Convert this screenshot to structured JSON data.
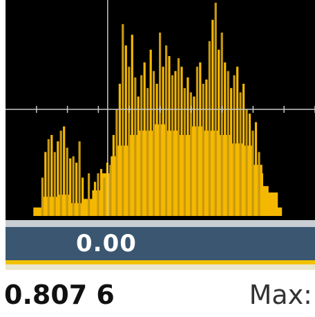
{
  "readout": {
    "value": "0.00"
  },
  "footer": {
    "value": "0.807 6",
    "max_label": "Max:"
  },
  "colors": {
    "plot_background": "#000000",
    "bar_fill": "#f5b800",
    "spike": "#c89a10",
    "crosshair": "#c8c8c8",
    "value_bar": "#3a5670",
    "accent": "#f2c200"
  },
  "chart_data": {
    "type": "bar",
    "xlim": [
      0,
      100
    ],
    "ylim": [
      0,
      100
    ],
    "crosshair": {
      "x": 33.0,
      "y": 50.0
    },
    "marker_lines": [
      {
        "axis": "y",
        "value": 50.0,
        "dashed": true
      }
    ],
    "fill_profile": [
      [
        9,
        4
      ],
      [
        12,
        9
      ],
      [
        17,
        10
      ],
      [
        21,
        6
      ],
      [
        25,
        8
      ],
      [
        28,
        12
      ],
      [
        31,
        20
      ],
      [
        34,
        28
      ],
      [
        36,
        33
      ],
      [
        40,
        38
      ],
      [
        43,
        40
      ],
      [
        48,
        43
      ],
      [
        52,
        40
      ],
      [
        56,
        38
      ],
      [
        60,
        42
      ],
      [
        64,
        40
      ],
      [
        69,
        38
      ],
      [
        73,
        34
      ],
      [
        77,
        33
      ],
      [
        80,
        24
      ],
      [
        83,
        14
      ],
      [
        85,
        11
      ],
      [
        88,
        4
      ]
    ],
    "spikes": [
      [
        12,
        18
      ],
      [
        13,
        30
      ],
      [
        14,
        36
      ],
      [
        15,
        38
      ],
      [
        16,
        30
      ],
      [
        17,
        35
      ],
      [
        18,
        40
      ],
      [
        19,
        42
      ],
      [
        20,
        32
      ],
      [
        21,
        27
      ],
      [
        22,
        28
      ],
      [
        23,
        25
      ],
      [
        24,
        35
      ],
      [
        25,
        18
      ],
      [
        27,
        20
      ],
      [
        29,
        16
      ],
      [
        30,
        20
      ],
      [
        31,
        22
      ],
      [
        32,
        18
      ],
      [
        33,
        25
      ],
      [
        34,
        24
      ],
      [
        35,
        38
      ],
      [
        36,
        50
      ],
      [
        37,
        62
      ],
      [
        38,
        90
      ],
      [
        39,
        80
      ],
      [
        40,
        70
      ],
      [
        41,
        85
      ],
      [
        42,
        65
      ],
      [
        43,
        56
      ],
      [
        44,
        66
      ],
      [
        45,
        72
      ],
      [
        46,
        60
      ],
      [
        47,
        78
      ],
      [
        48,
        68
      ],
      [
        49,
        62
      ],
      [
        50,
        86
      ],
      [
        51,
        70
      ],
      [
        52,
        80
      ],
      [
        53,
        75
      ],
      [
        54,
        66
      ],
      [
        55,
        68
      ],
      [
        56,
        74
      ],
      [
        57,
        70
      ],
      [
        58,
        60
      ],
      [
        59,
        65
      ],
      [
        60,
        58
      ],
      [
        61,
        56
      ],
      [
        62,
        70
      ],
      [
        63,
        72
      ],
      [
        64,
        62
      ],
      [
        65,
        64
      ],
      [
        66,
        82
      ],
      [
        67,
        92
      ],
      [
        68,
        100
      ],
      [
        69,
        78
      ],
      [
        70,
        86
      ],
      [
        71,
        72
      ],
      [
        72,
        68
      ],
      [
        73,
        60
      ],
      [
        74,
        66
      ],
      [
        75,
        70
      ],
      [
        76,
        58
      ],
      [
        77,
        62
      ],
      [
        78,
        50
      ],
      [
        79,
        48
      ],
      [
        80,
        40
      ],
      [
        81,
        44
      ],
      [
        82,
        30
      ],
      [
        83,
        20
      ]
    ]
  }
}
